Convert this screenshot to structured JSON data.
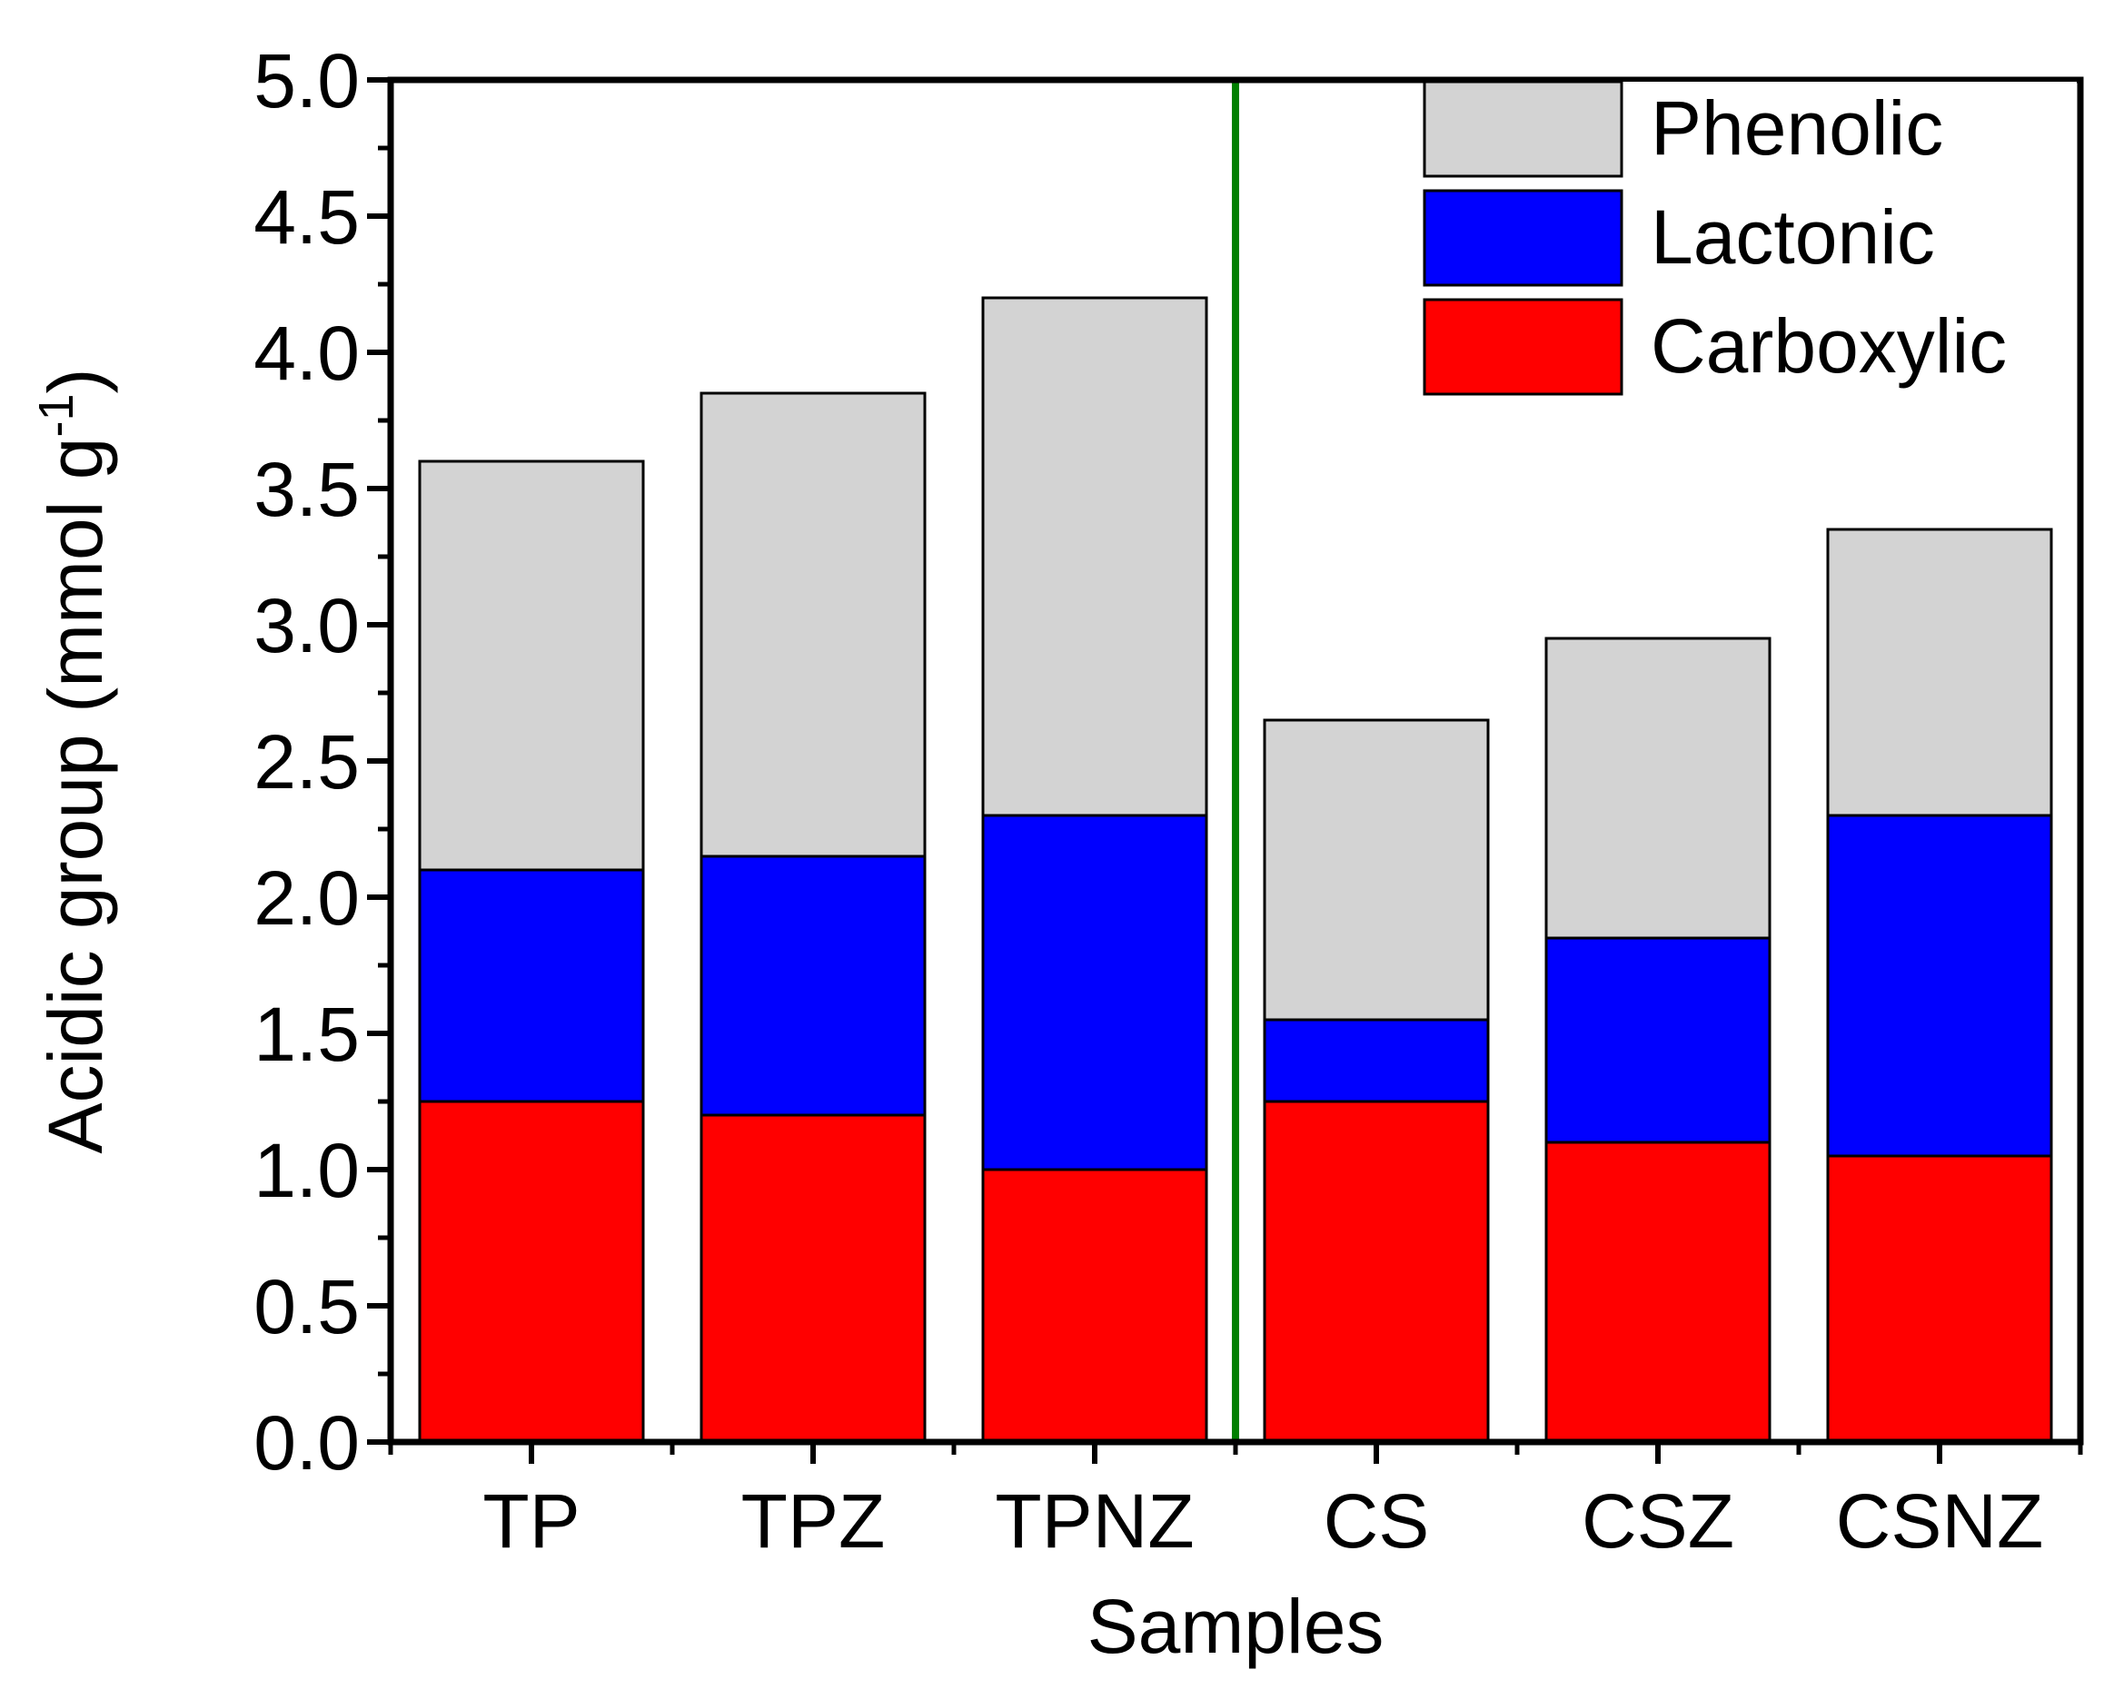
{
  "chart_data": {
    "type": "bar",
    "stacked": true,
    "categories": [
      "TP",
      "TPZ",
      "TPNZ",
      "CS",
      "CSZ",
      "CSNZ"
    ],
    "series": [
      {
        "name": "Carboxylic",
        "color": "#ff0000",
        "values": [
          1.25,
          1.2,
          1.0,
          1.25,
          1.1,
          1.05
        ]
      },
      {
        "name": "Lactonic",
        "color": "#0000ff",
        "values": [
          0.85,
          0.95,
          1.3,
          0.3,
          0.75,
          1.25
        ]
      },
      {
        "name": "Phenolic",
        "color": "#d3d3d3",
        "values": [
          1.5,
          1.7,
          1.9,
          1.1,
          1.1,
          1.05
        ]
      }
    ],
    "legend_order": [
      "Phenolic",
      "Lactonic",
      "Carboxylic"
    ],
    "xlabel": "Samples",
    "ylabel": {
      "main": "Acidic group (mmol g",
      "superscript": "-1",
      "close": ")"
    },
    "ylim": [
      0,
      5.0
    ],
    "yticks": [
      "0.0",
      "0.5",
      "1.0",
      "1.5",
      "2.0",
      "2.5",
      "3.0",
      "3.5",
      "4.0",
      "4.5",
      "5.0"
    ],
    "legend_position": "top-right",
    "separator_after_category": "TPNZ",
    "separator_color": "#008000"
  }
}
